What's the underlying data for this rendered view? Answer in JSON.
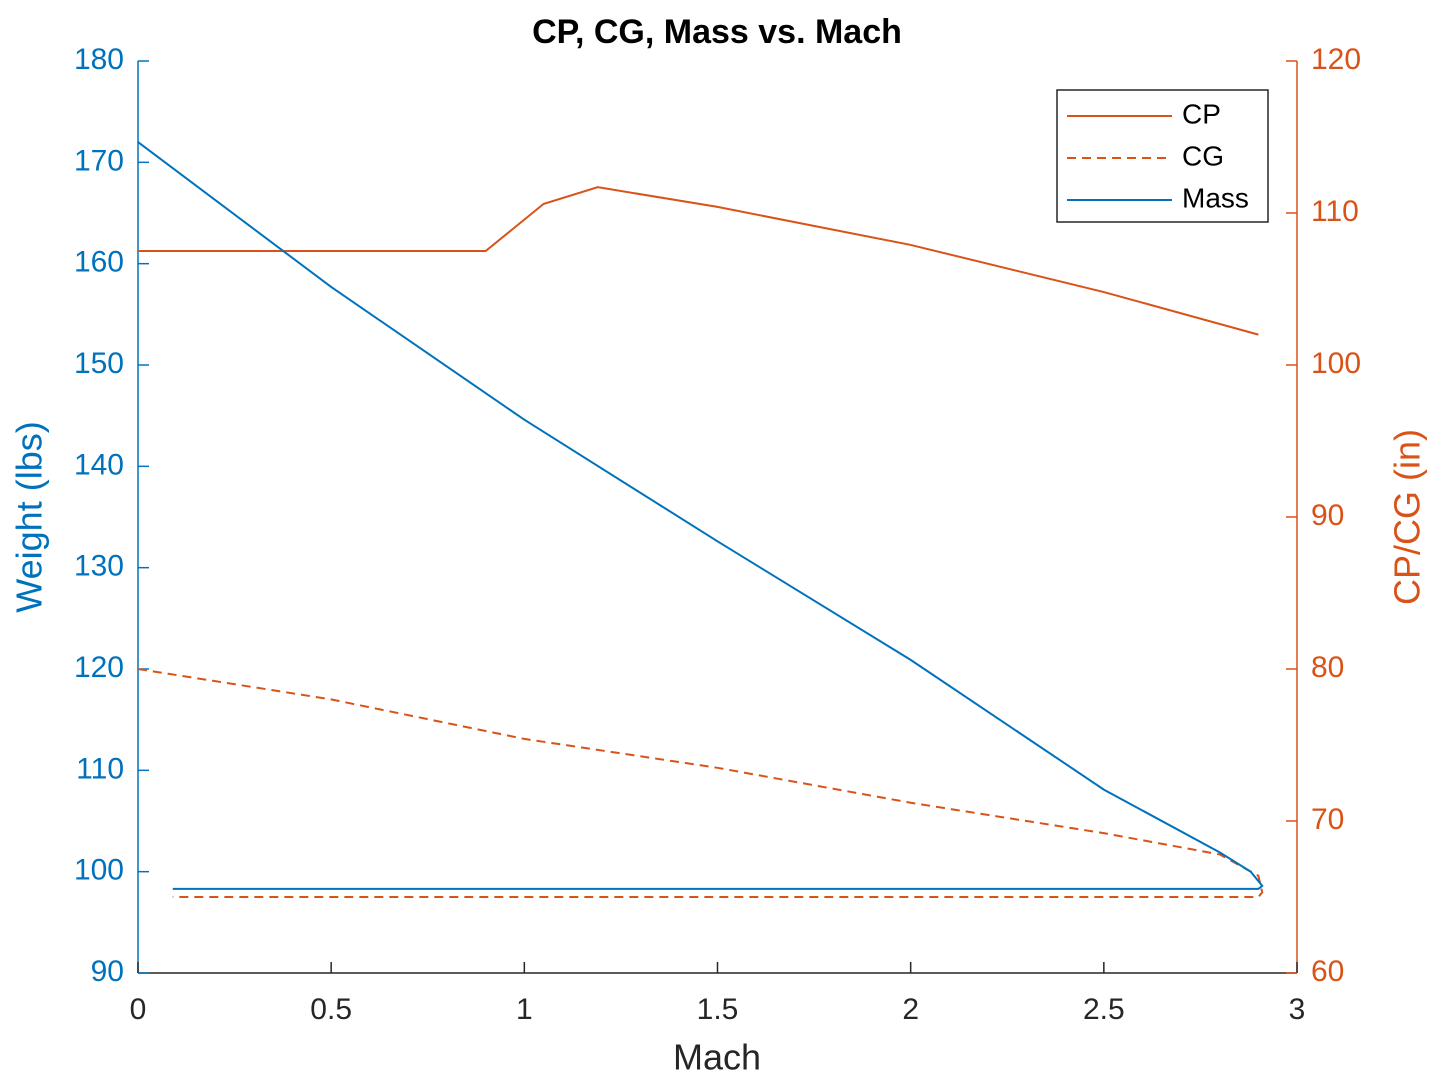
{
  "chart_data": {
    "type": "line",
    "title": "CP, CG, Mass vs. Mach",
    "xlabel": "Mach",
    "ylabel": "Weight (lbs)",
    "y2label": "CP/CG (in)",
    "xlim": [
      0,
      3
    ],
    "xticks": [
      0,
      0.5,
      1,
      1.5,
      2,
      2.5,
      3
    ],
    "ylim": [
      90,
      180
    ],
    "yticks": [
      90,
      100,
      110,
      120,
      130,
      140,
      150,
      160,
      170,
      180
    ],
    "y2lim": [
      60,
      120
    ],
    "y2ticks": [
      60,
      70,
      80,
      90,
      100,
      110,
      120
    ],
    "y_color": "#0072BD",
    "y2_color": "#D95319",
    "legend": "upper right",
    "series": [
      {
        "name": "CP",
        "color": "#D95319",
        "dash": "solid",
        "axis": "y2",
        "x": [
          0,
          0.9,
          1.05,
          1.19,
          1.5,
          2.0,
          2.5,
          2.9
        ],
        "values": [
          107.5,
          107.5,
          110.6,
          111.7,
          110.4,
          107.9,
          104.8,
          102.0
        ]
      },
      {
        "name": "CG",
        "color": "#D95319",
        "dash": "dashed",
        "axis": "y2",
        "x": [
          0,
          0.5,
          1,
          1.5,
          2,
          2.5,
          2.8,
          2.9,
          2.91,
          2.9,
          0.09
        ],
        "values": [
          80,
          78.0,
          75.4,
          73.5,
          71.2,
          69.2,
          67.8,
          66.4,
          65.3,
          65.0,
          65.0
        ]
      },
      {
        "name": "Mass",
        "color": "#0072BD",
        "dash": "solid",
        "axis": "y",
        "x": [
          0,
          0.5,
          1,
          1.5,
          2,
          2.5,
          2.8,
          2.88,
          2.91,
          2.9,
          0.09
        ],
        "values": [
          172,
          157.7,
          144.6,
          132.6,
          120.9,
          108.1,
          101.9,
          100.0,
          98.6,
          98.3,
          98.3
        ]
      }
    ]
  }
}
